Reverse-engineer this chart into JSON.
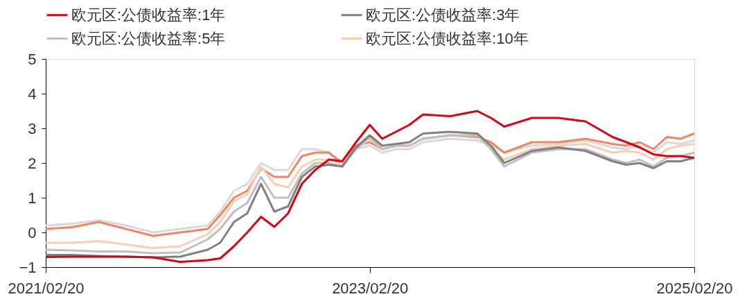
{
  "chart_data": {
    "type": "line",
    "x": [
      "2021-02-20",
      "2021-04-20",
      "2021-06-20",
      "2021-08-20",
      "2021-10-20",
      "2021-12-20",
      "2022-02-20",
      "2022-03-20",
      "2022-04-20",
      "2022-05-20",
      "2022-06-20",
      "2022-07-20",
      "2022-08-20",
      "2022-09-20",
      "2022-10-20",
      "2022-11-20",
      "2022-12-20",
      "2023-01-20",
      "2023-02-20",
      "2023-03-20",
      "2023-04-20",
      "2023-05-20",
      "2023-06-20",
      "2023-08-20",
      "2023-10-20",
      "2023-11-20",
      "2023-12-20",
      "2024-02-20",
      "2024-04-20",
      "2024-06-20",
      "2024-08-20",
      "2024-09-20",
      "2024-10-20",
      "2024-11-20",
      "2024-12-20",
      "2025-01-20",
      "2025-02-20"
    ],
    "series": [
      {
        "color": "#d9d9d9",
        "values": [
          0.2,
          0.25,
          0.35,
          0.2,
          0.0,
          0.1,
          0.2,
          0.6,
          1.2,
          1.4,
          2.0,
          1.8,
          1.8,
          2.4,
          2.4,
          2.3,
          1.9,
          2.4,
          2.5,
          2.3,
          2.4,
          2.4,
          2.6,
          2.7,
          2.65,
          2.5,
          2.3,
          2.5,
          2.55,
          2.65,
          2.45,
          2.4,
          2.5,
          2.3,
          2.6,
          2.55,
          2.65
        ]
      },
      {
        "color": "#f4845f",
        "values": [
          0.1,
          0.15,
          0.3,
          0.1,
          -0.1,
          0.0,
          0.1,
          0.5,
          1.0,
          1.2,
          1.85,
          1.6,
          1.6,
          2.2,
          2.3,
          2.3,
          2.0,
          2.5,
          2.6,
          2.4,
          2.5,
          2.5,
          2.7,
          2.8,
          2.75,
          2.6,
          2.3,
          2.6,
          2.6,
          2.7,
          2.55,
          2.5,
          2.6,
          2.4,
          2.75,
          2.7,
          2.85
        ]
      },
      {
        "name": "欧元区:公债收益率:10年",
        "color": "#fbcdb5",
        "values": [
          -0.3,
          -0.3,
          -0.25,
          -0.35,
          -0.45,
          -0.4,
          -0.05,
          0.3,
          0.9,
          1.1,
          1.9,
          1.4,
          1.3,
          1.9,
          2.1,
          2.1,
          2.0,
          2.4,
          2.7,
          2.4,
          2.5,
          2.5,
          2.7,
          2.8,
          2.8,
          2.4,
          2.1,
          2.4,
          2.5,
          2.55,
          2.3,
          2.35,
          2.3,
          2.1,
          2.4,
          2.5,
          2.55
        ]
      },
      {
        "name": "欧元区:公债收益率:5年",
        "color": "#bfbfbf",
        "values": [
          -0.5,
          -0.52,
          -0.55,
          -0.55,
          -0.6,
          -0.58,
          -0.2,
          0.1,
          0.6,
          0.85,
          1.6,
          1.0,
          1.0,
          1.7,
          2.0,
          2.0,
          1.9,
          2.4,
          2.75,
          2.4,
          2.5,
          2.5,
          2.7,
          2.8,
          2.8,
          2.4,
          1.9,
          2.3,
          2.4,
          2.4,
          2.1,
          2.0,
          2.1,
          1.9,
          2.15,
          2.2,
          2.3
        ]
      },
      {
        "name": "欧元区:公债收益率:3年",
        "color": "#808080",
        "values": [
          -0.65,
          -0.65,
          -0.68,
          -0.7,
          -0.72,
          -0.7,
          -0.5,
          -0.3,
          0.3,
          0.55,
          1.4,
          0.6,
          0.75,
          1.6,
          1.9,
          1.95,
          1.9,
          2.45,
          2.8,
          2.5,
          2.55,
          2.6,
          2.85,
          2.9,
          2.85,
          2.5,
          2.0,
          2.35,
          2.45,
          2.35,
          2.05,
          1.95,
          2.0,
          1.85,
          2.05,
          2.05,
          2.15
        ]
      },
      {
        "name": "欧元区:公债收益率:1年",
        "color": "#e00012",
        "values": [
          -0.71,
          -0.7,
          -0.7,
          -0.7,
          -0.72,
          -0.85,
          -0.8,
          -0.75,
          -0.4,
          0.0,
          0.45,
          0.16,
          0.55,
          1.4,
          1.8,
          2.1,
          2.05,
          2.6,
          3.1,
          2.7,
          2.9,
          3.1,
          3.4,
          3.35,
          3.5,
          3.3,
          3.05,
          3.3,
          3.3,
          3.2,
          2.75,
          2.6,
          2.45,
          2.25,
          2.2,
          2.2,
          2.15
        ]
      }
    ],
    "xlim": [
      "2021-02-20",
      "2025-02-20"
    ],
    "xticks": [
      {
        "value": "2021-02-20",
        "label": "2021/02/20"
      },
      {
        "value": "2023-02-20",
        "label": "2023/02/20"
      },
      {
        "value": "2025-02-20",
        "label": "2025/02/20"
      }
    ],
    "ylim": [
      -1,
      5
    ],
    "yticks": [
      -1,
      0,
      1,
      2,
      3,
      4,
      5
    ],
    "grid": false,
    "legend": "top",
    "marker": "none",
    "line_style": "solid"
  }
}
